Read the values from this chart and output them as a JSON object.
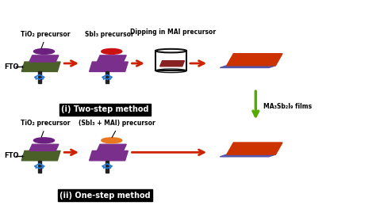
{
  "white": "#ffffff",
  "black": "#000000",
  "olive_green": "#4A6028",
  "purple_top": "#7B2F8C",
  "bright_red_dot": "#CC1111",
  "orange_dot": "#E87820",
  "purple_dot": "#6B2080",
  "red_orange_film": "#CC3300",
  "film_bottom": "#5555AA",
  "blue_arrow": "#2277DD",
  "green_arrow": "#55AA00",
  "arrow_color": "#CC2200",
  "label_bg": "#000000",
  "label_text": "#ffffff",
  "beaker_edge": "#111111",
  "dark_red_film": "#882222",
  "title_top": "TiO₂ precursor",
  "title_sbi3": "SbI₃ precursor",
  "title_dip": "Dipping in MAI precursor",
  "label_two_step": "(i) Two-step method",
  "label_one_step": "(ii) One-step method",
  "title_sbi3_mai": "(SbI₃ + MAI) precursor",
  "title_tio2_bot": "TiO₂ precursor",
  "final_label": "MA₃Sb₂I₉ films",
  "fto_label": "FTO",
  "figw": 4.74,
  "figh": 2.74,
  "dpi": 100
}
